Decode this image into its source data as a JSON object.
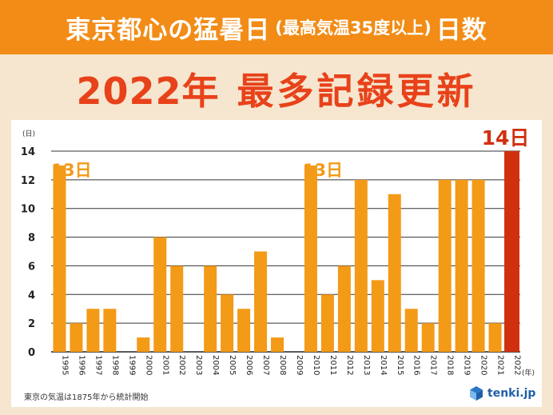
{
  "header": {
    "title_main": "東京都心の猛暑日",
    "title_sub": "(最高気温35度以上)",
    "title_end": "日数"
  },
  "headline": {
    "year": "2022年",
    "text": "最多記録更新"
  },
  "chart_data": {
    "type": "bar",
    "title": "",
    "xlabel": "(年)",
    "ylabel": "(日)",
    "ylim": [
      0,
      14
    ],
    "yticks": [
      0,
      2,
      4,
      6,
      8,
      10,
      12,
      14
    ],
    "grid": true,
    "categories": [
      "1995",
      "1996",
      "1997",
      "1998",
      "1999",
      "2000",
      "2001",
      "2002",
      "2003",
      "2004",
      "2005",
      "2006",
      "2007",
      "2008",
      "2009",
      "2010",
      "2011",
      "2012",
      "2013",
      "2014",
      "2015",
      "2016",
      "2017",
      "2018",
      "2019",
      "2020",
      "2021",
      "2022"
    ],
    "values": [
      13,
      2,
      3,
      3,
      0,
      1,
      8,
      6,
      0,
      6,
      4,
      3,
      7,
      1,
      0,
      13,
      4,
      6,
      12,
      5,
      11,
      3,
      2,
      12,
      12,
      12,
      2,
      14
    ],
    "colors": {
      "normal": "#f39a17",
      "highlight": "#d1300f"
    },
    "highlight_index": 27,
    "annotations": [
      {
        "category": "1995",
        "text": "13日",
        "color": "#f39a17"
      },
      {
        "category": "2010",
        "text": "13日",
        "color": "#f39a17"
      },
      {
        "category": "2022",
        "text": "14日",
        "color": "#d1300f"
      }
    ]
  },
  "footnote": "東京の気温は1875年から統計開始",
  "logo": {
    "text": "tenki.jp",
    "icon": "tenki-logo-icon"
  }
}
